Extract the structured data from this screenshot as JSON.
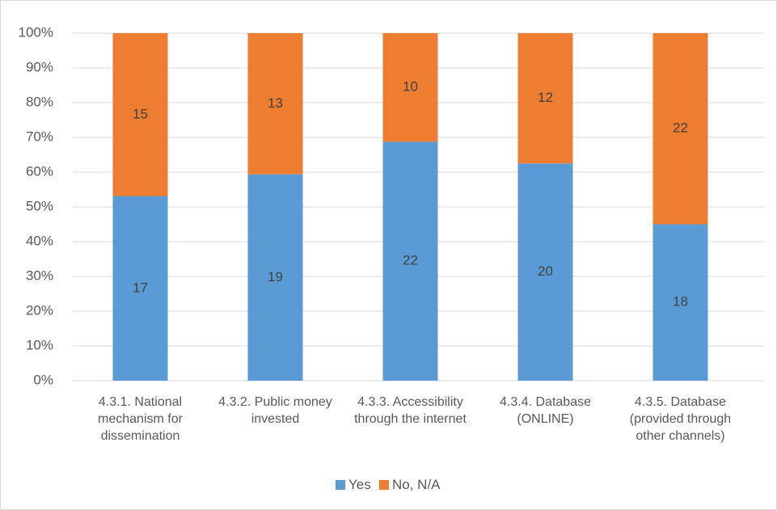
{
  "chart_data": {
    "type": "bar",
    "stacked_percent": true,
    "categories": [
      "4.3.1. National mechanism for dissemination",
      "4.3.2. Public money invested",
      "4.3.3. Accessibility through the internet",
      "4.3.4. Database (ONLINE)",
      "4.3.5. Database (provided through other channels)"
    ],
    "series": [
      {
        "name": "Yes",
        "color": "#5b9bd5",
        "values": [
          17,
          19,
          22,
          20,
          18
        ]
      },
      {
        "name": "No, N/A",
        "color": "#ed7d31",
        "values": [
          15,
          13,
          10,
          12,
          22
        ]
      }
    ],
    "ylim": [
      0,
      100
    ],
    "yticks": [
      {
        "value": 0,
        "label": "0%"
      },
      {
        "value": 10,
        "label": "10%"
      },
      {
        "value": 20,
        "label": "20%"
      },
      {
        "value": 30,
        "label": "30%"
      },
      {
        "value": 40,
        "label": "40%"
      },
      {
        "value": 50,
        "label": "50%"
      },
      {
        "value": 60,
        "label": "60%"
      },
      {
        "value": 70,
        "label": "70%"
      },
      {
        "value": 80,
        "label": "80%"
      },
      {
        "value": 90,
        "label": "90%"
      },
      {
        "value": 100,
        "label": "100%"
      }
    ],
    "grid": true,
    "legend": "bottom"
  }
}
